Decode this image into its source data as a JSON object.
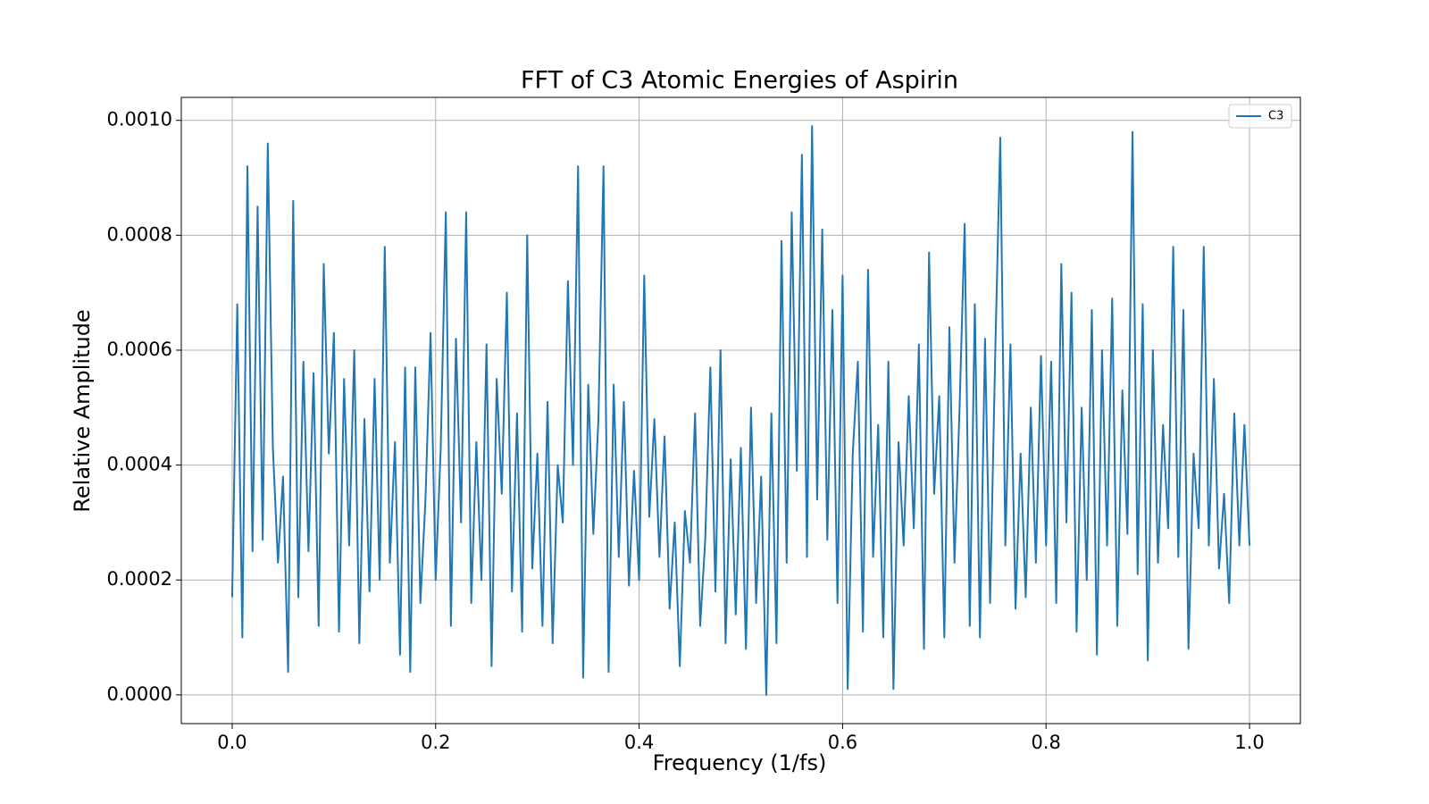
{
  "chart_data": {
    "type": "line",
    "title": "FFT of C3 Atomic Energies of Aspirin",
    "x_label": "Frequency (1/fs)",
    "y_label": "Relative Amplitude",
    "x": [
      0,
      0.005,
      0.01,
      0.015,
      0.02,
      0.025,
      0.03,
      0.035,
      0.04,
      0.045,
      0.05,
      0.055,
      0.06,
      0.065,
      0.07,
      0.075,
      0.08,
      0.085,
      0.09,
      0.095,
      0.1,
      0.105,
      0.11,
      0.115,
      0.12,
      0.125,
      0.13,
      0.135,
      0.14,
      0.145,
      0.15,
      0.155,
      0.16,
      0.165,
      0.17,
      0.175,
      0.18,
      0.185,
      0.19,
      0.195,
      0.2,
      0.205,
      0.21,
      0.215,
      0.22,
      0.225,
      0.23,
      0.235,
      0.24,
      0.245,
      0.25,
      0.255,
      0.26,
      0.265,
      0.27,
      0.275,
      0.28,
      0.285,
      0.29,
      0.295,
      0.3,
      0.305,
      0.31,
      0.315,
      0.32,
      0.325,
      0.33,
      0.335,
      0.34,
      0.345,
      0.35,
      0.355,
      0.36,
      0.365,
      0.37,
      0.375,
      0.38,
      0.385,
      0.39,
      0.395,
      0.4,
      0.405,
      0.41,
      0.415,
      0.42,
      0.425,
      0.43,
      0.435,
      0.44,
      0.445,
      0.45,
      0.455,
      0.46,
      0.465,
      0.47,
      0.475,
      0.48,
      0.485,
      0.49,
      0.495,
      0.5,
      0.505,
      0.51,
      0.515,
      0.52,
      0.525,
      0.53,
      0.535,
      0.54,
      0.545,
      0.55,
      0.555,
      0.56,
      0.565,
      0.57,
      0.575,
      0.58,
      0.585,
      0.59,
      0.595,
      0.6,
      0.605,
      0.61,
      0.615,
      0.62,
      0.625,
      0.63,
      0.635,
      0.64,
      0.645,
      0.65,
      0.655,
      0.66,
      0.665,
      0.67,
      0.675,
      0.68,
      0.685,
      0.69,
      0.695,
      0.7,
      0.705,
      0.71,
      0.715,
      0.72,
      0.725,
      0.73,
      0.735,
      0.74,
      0.745,
      0.75,
      0.755,
      0.76,
      0.765,
      0.77,
      0.775,
      0.78,
      0.785,
      0.79,
      0.795,
      0.8,
      0.805,
      0.81,
      0.815,
      0.82,
      0.825,
      0.83,
      0.835,
      0.84,
      0.845,
      0.85,
      0.855,
      0.86,
      0.865,
      0.87,
      0.875,
      0.88,
      0.885,
      0.89,
      0.895,
      0.9,
      0.905,
      0.91,
      0.915,
      0.92,
      0.925,
      0.93,
      0.935,
      0.94,
      0.945,
      0.95,
      0.955,
      0.96,
      0.965,
      0.97,
      0.975,
      0.98,
      0.985,
      0.99,
      0.995,
      1
    ],
    "series": [
      {
        "name": "C3",
        "color": "#1f77b4",
        "values": [
          0.00017,
          0.00068,
          0.0001,
          0.00092,
          0.00025,
          0.00085,
          0.00027,
          0.00096,
          0.00043,
          0.00023,
          0.00038,
          4e-05,
          0.00086,
          0.00017,
          0.00058,
          0.00025,
          0.00056,
          0.00012,
          0.00075,
          0.00042,
          0.00063,
          0.00011,
          0.00055,
          0.00026,
          0.0006,
          9e-05,
          0.00048,
          0.00018,
          0.00055,
          0.0002,
          0.00078,
          0.00023,
          0.00044,
          7e-05,
          0.00057,
          4e-05,
          0.00057,
          0.00016,
          0.00034,
          0.00063,
          0.0002,
          0.00043,
          0.00084,
          0.00012,
          0.00062,
          0.0003,
          0.00084,
          0.00016,
          0.00044,
          0.0002,
          0.00061,
          5e-05,
          0.00055,
          0.00035,
          0.0007,
          0.00018,
          0.00049,
          0.00011,
          0.0008,
          0.00022,
          0.00042,
          0.00012,
          0.00051,
          9e-05,
          0.0004,
          0.0003,
          0.00072,
          0.0004,
          0.00092,
          3e-05,
          0.00054,
          0.00028,
          0.00048,
          0.00092,
          4e-05,
          0.00054,
          0.00024,
          0.00051,
          0.00019,
          0.00039,
          0.0002,
          0.00073,
          0.00031,
          0.00048,
          0.00024,
          0.00045,
          0.00015,
          0.0003,
          5e-05,
          0.00032,
          0.00023,
          0.00049,
          0.00012,
          0.00027,
          0.00057,
          0.00018,
          0.0006,
          9e-05,
          0.00041,
          0.00014,
          0.00043,
          8e-05,
          0.0005,
          0.00016,
          0.00038,
          0,
          0.00049,
          9e-05,
          0.00079,
          0.00023,
          0.00084,
          0.00039,
          0.00094,
          0.00024,
          0.00099,
          0.00034,
          0.00081,
          0.00027,
          0.00067,
          0.00016,
          0.00073,
          1e-05,
          0.00042,
          0.00058,
          0.00011,
          0.00074,
          0.00024,
          0.00047,
          0.0001,
          0.00058,
          1e-05,
          0.00044,
          0.00026,
          0.00052,
          0.00029,
          0.00061,
          8e-05,
          0.00077,
          0.00035,
          0.00052,
          0.0001,
          0.00064,
          0.00023,
          0.0005,
          0.00082,
          0.00012,
          0.00068,
          0.0001,
          0.00062,
          0.00016,
          0.00059,
          0.00097,
          0.00026,
          0.00061,
          0.00015,
          0.00042,
          0.00017,
          0.0005,
          0.00023,
          0.00059,
          0.00026,
          0.00058,
          0.00016,
          0.00075,
          0.0003,
          0.0007,
          0.00011,
          0.0005,
          0.0002,
          0.00067,
          7e-05,
          0.0006,
          0.00026,
          0.00069,
          0.00012,
          0.00053,
          0.00028,
          0.00098,
          0.00021,
          0.00068,
          6e-05,
          0.0006,
          0.00023,
          0.00047,
          0.00029,
          0.00078,
          0.00024,
          0.00067,
          8e-05,
          0.00042,
          0.00029,
          0.00078,
          0.00026,
          0.00055,
          0.00022,
          0.00035,
          0.00016,
          0.00049,
          0.00026,
          0.00047,
          0.00026
        ]
      }
    ],
    "xlim": [
      -0.05,
      1.05
    ],
    "ylim": [
      -5e-05,
      0.00104
    ],
    "xticks": [
      {
        "value": 0,
        "label": "0.0"
      },
      {
        "value": 0.2,
        "label": "0.2"
      },
      {
        "value": 0.4,
        "label": "0.4"
      },
      {
        "value": 0.6,
        "label": "0.6"
      },
      {
        "value": 0.8,
        "label": "0.8"
      },
      {
        "value": 1,
        "label": "1.0"
      }
    ],
    "yticks": [
      {
        "value": 0,
        "label": "0.0000"
      },
      {
        "value": 0.0002,
        "label": "0.0002"
      },
      {
        "value": 0.0004,
        "label": "0.0004"
      },
      {
        "value": 0.0006,
        "label": "0.0006"
      },
      {
        "value": 0.0008,
        "label": "0.0008"
      },
      {
        "value": 0.001,
        "label": "0.0010"
      }
    ],
    "grid": true,
    "legend": "upper right"
  }
}
